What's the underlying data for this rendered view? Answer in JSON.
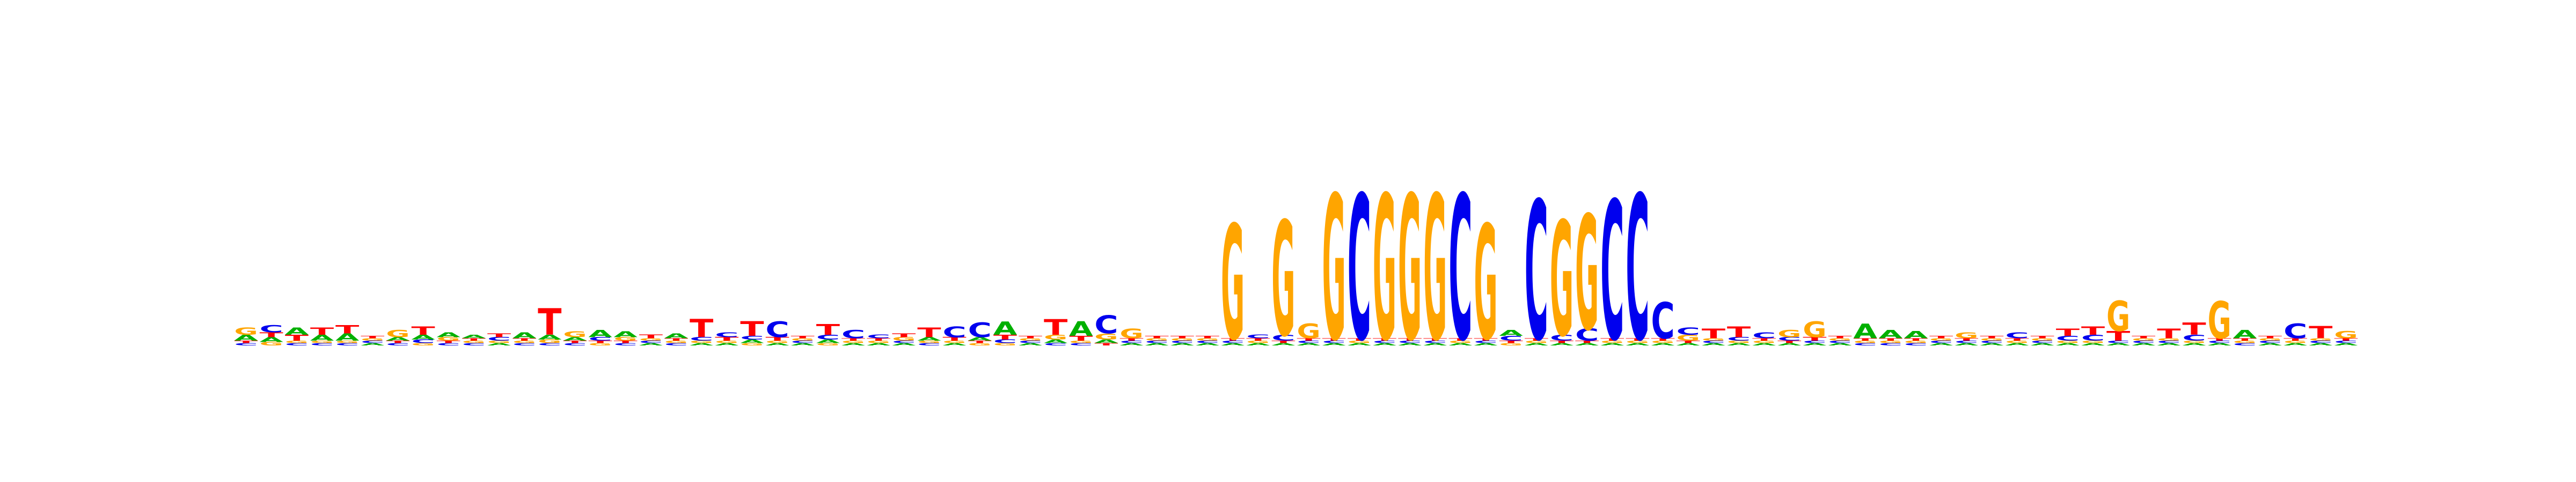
{
  "colors": {
    "A": "#00b000",
    "C": "#0000ee",
    "G": "#ffa500",
    "T": "#ff0000"
  },
  "chart_data": {
    "type": "sequence_logo",
    "alphabet": [
      "A",
      "C",
      "G",
      "T"
    ],
    "ylim": [
      0,
      2
    ],
    "axes_visible": false,
    "title": "",
    "xlabel": "",
    "ylabel": "",
    "positions": [
      {
        "A": 0.05,
        "C": 0.02,
        "G": 0.06,
        "T": 0.02
      },
      {
        "A": 0.04,
        "C": 0.06,
        "G": 0.03,
        "T": 0.04
      },
      {
        "A": 0.06,
        "C": 0.02,
        "G": 0.02,
        "T": 0.05
      },
      {
        "A": 0.05,
        "C": 0.02,
        "G": 0.02,
        "T": 0.06
      },
      {
        "A": 0.06,
        "C": 0.02,
        "G": 0.02,
        "T": 0.07
      },
      {
        "A": 0.02,
        "C": 0.02,
        "G": 0.02,
        "T": 0.02
      },
      {
        "A": 0.03,
        "C": 0.02,
        "G": 0.06,
        "T": 0.02
      },
      {
        "A": 0.04,
        "C": 0.03,
        "G": 0.02,
        "T": 0.07
      },
      {
        "A": 0.04,
        "C": 0.02,
        "G": 0.03,
        "T": 0.02
      },
      {
        "A": 0.03,
        "C": 0.02,
        "G": 0.02,
        "T": 0.02
      },
      {
        "A": 0.02,
        "C": 0.03,
        "G": 0.02,
        "T": 0.03
      },
      {
        "A": 0.05,
        "C": 0.02,
        "G": 0.02,
        "T": 0.02
      },
      {
        "A": 0.04,
        "C": 0.02,
        "G": 0.03,
        "T": 0.22
      },
      {
        "A": 0.03,
        "C": 0.02,
        "G": 0.05,
        "T": 0.02
      },
      {
        "A": 0.06,
        "C": 0.03,
        "G": 0.02,
        "T": 0.02
      },
      {
        "A": 0.05,
        "C": 0.02,
        "G": 0.03,
        "T": 0.02
      },
      {
        "A": 0.02,
        "C": 0.02,
        "G": 0.02,
        "T": 0.03
      },
      {
        "A": 0.04,
        "C": 0.02,
        "G": 0.02,
        "T": 0.02
      },
      {
        "A": 0.02,
        "C": 0.03,
        "G": 0.02,
        "T": 0.15
      },
      {
        "A": 0.02,
        "C": 0.04,
        "G": 0.02,
        "T": 0.03
      },
      {
        "A": 0.03,
        "C": 0.03,
        "G": 0.02,
        "T": 0.12
      },
      {
        "A": 0.02,
        "C": 0.13,
        "G": 0.02,
        "T": 0.03
      },
      {
        "A": 0.02,
        "C": 0.02,
        "G": 0.02,
        "T": 0.02
      },
      {
        "A": 0.03,
        "C": 0.04,
        "G": 0.02,
        "T": 0.09
      },
      {
        "A": 0.02,
        "C": 0.07,
        "G": 0.02,
        "T": 0.02
      },
      {
        "A": 0.02,
        "C": 0.03,
        "G": 0.02,
        "T": 0.02
      },
      {
        "A": 0.02,
        "C": 0.02,
        "G": 0.03,
        "T": 0.03
      },
      {
        "A": 0.03,
        "C": 0.02,
        "G": 0.02,
        "T": 0.08
      },
      {
        "A": 0.02,
        "C": 0.09,
        "G": 0.02,
        "T": 0.03
      },
      {
        "A": 0.03,
        "C": 0.12,
        "G": 0.02,
        "T": 0.02
      },
      {
        "A": 0.11,
        "C": 0.03,
        "G": 0.02,
        "T": 0.04
      },
      {
        "A": 0.02,
        "C": 0.02,
        "G": 0.02,
        "T": 0.02
      },
      {
        "A": 0.03,
        "C": 0.02,
        "G": 0.04,
        "T": 0.13
      },
      {
        "A": 0.12,
        "C": 0.02,
        "G": 0.02,
        "T": 0.04
      },
      {
        "A": 0.03,
        "C": 0.15,
        "G": 0.05,
        "T": 0.02
      },
      {
        "A": 0.02,
        "C": 0.02,
        "G": 0.08,
        "T": 0.02
      },
      {
        "A": 0.02,
        "C": 0.02,
        "G": 0.02,
        "T": 0.02
      },
      {
        "A": 0.02,
        "C": 0.02,
        "G": 0.02,
        "T": 0.02
      },
      {
        "A": 0.02,
        "C": 0.02,
        "G": 0.02,
        "T": 0.02
      },
      {
        "A": 0.02,
        "C": 0.02,
        "G": 0.95,
        "T": 0.02
      },
      {
        "A": 0.02,
        "C": 0.03,
        "G": 0.02,
        "T": 0.02
      },
      {
        "A": 0.02,
        "C": 0.05,
        "G": 0.95,
        "T": 0.02
      },
      {
        "A": 0.02,
        "C": 0.02,
        "G": 0.12,
        "T": 0.02
      },
      {
        "A": 0.02,
        "C": 0.02,
        "G": 1.2,
        "T": 0.02
      },
      {
        "A": 0.02,
        "C": 1.2,
        "G": 0.02,
        "T": 0.02
      },
      {
        "A": 0.02,
        "C": 0.02,
        "G": 1.2,
        "T": 0.02
      },
      {
        "A": 0.02,
        "C": 0.02,
        "G": 1.2,
        "T": 0.02
      },
      {
        "A": 0.02,
        "C": 0.02,
        "G": 1.2,
        "T": 0.02
      },
      {
        "A": 0.02,
        "C": 1.2,
        "G": 0.02,
        "T": 0.02
      },
      {
        "A": 0.02,
        "C": 0.02,
        "G": 0.95,
        "T": 0.02
      },
      {
        "A": 0.05,
        "C": 0.04,
        "G": 0.02,
        "T": 0.02
      },
      {
        "A": 0.02,
        "C": 1.15,
        "G": 0.02,
        "T": 0.02
      },
      {
        "A": 0.02,
        "C": 0.05,
        "G": 0.95,
        "T": 0.02
      },
      {
        "A": 0.02,
        "C": 0.1,
        "G": 0.95,
        "T": 0.02
      },
      {
        "A": 0.02,
        "C": 1.15,
        "G": 0.02,
        "T": 0.02
      },
      {
        "A": 0.02,
        "C": 1.2,
        "G": 0.02,
        "T": 0.02
      },
      {
        "A": 0.02,
        "C": 0.3,
        "G": 0.02,
        "T": 0.02
      },
      {
        "A": 0.02,
        "C": 0.06,
        "G": 0.05,
        "T": 0.02
      },
      {
        "A": 0.02,
        "C": 0.02,
        "G": 0.02,
        "T": 0.08
      },
      {
        "A": 0.02,
        "C": 0.03,
        "G": 0.02,
        "T": 0.09
      },
      {
        "A": 0.02,
        "C": 0.05,
        "G": 0.02,
        "T": 0.02
      },
      {
        "A": 0.02,
        "C": 0.03,
        "G": 0.06,
        "T": 0.02
      },
      {
        "A": 0.02,
        "C": 0.02,
        "G": 0.13,
        "T": 0.03
      },
      {
        "A": 0.02,
        "C": 0.02,
        "G": 0.02,
        "T": 0.02
      },
      {
        "A": 0.12,
        "C": 0.02,
        "G": 0.02,
        "T": 0.02
      },
      {
        "A": 0.07,
        "C": 0.02,
        "G": 0.02,
        "T": 0.02
      },
      {
        "A": 0.06,
        "C": 0.02,
        "G": 0.02,
        "T": 0.02
      },
      {
        "A": 0.02,
        "C": 0.02,
        "G": 0.02,
        "T": 0.02
      },
      {
        "A": 0.02,
        "C": 0.02,
        "G": 0.05,
        "T": 0.02
      },
      {
        "A": 0.02,
        "C": 0.02,
        "G": 0.02,
        "T": 0.02
      },
      {
        "A": 0.02,
        "C": 0.05,
        "G": 0.02,
        "T": 0.02
      },
      {
        "A": 0.02,
        "C": 0.02,
        "G": 0.02,
        "T": 0.02
      },
      {
        "A": 0.02,
        "C": 0.04,
        "G": 0.02,
        "T": 0.06
      },
      {
        "A": 0.02,
        "C": 0.05,
        "G": 0.02,
        "T": 0.07
      },
      {
        "A": 0.02,
        "C": 0.02,
        "G": 0.25,
        "T": 0.08
      },
      {
        "A": 0.02,
        "C": 0.02,
        "G": 0.02,
        "T": 0.02
      },
      {
        "A": 0.02,
        "C": 0.02,
        "G": 0.02,
        "T": 0.08
      },
      {
        "A": 0.02,
        "C": 0.05,
        "G": 0.02,
        "T": 0.1
      },
      {
        "A": 0.02,
        "C": 0.02,
        "G": 0.31,
        "T": 0.02
      },
      {
        "A": 0.07,
        "C": 0.02,
        "G": 0.02,
        "T": 0.02
      },
      {
        "A": 0.02,
        "C": 0.02,
        "G": 0.02,
        "T": 0.02
      },
      {
        "A": 0.02,
        "C": 0.12,
        "G": 0.02,
        "T": 0.02
      },
      {
        "A": 0.02,
        "C": 0.02,
        "G": 0.02,
        "T": 0.1
      },
      {
        "A": 0.02,
        "C": 0.02,
        "G": 0.06,
        "T": 0.02
      }
    ]
  }
}
